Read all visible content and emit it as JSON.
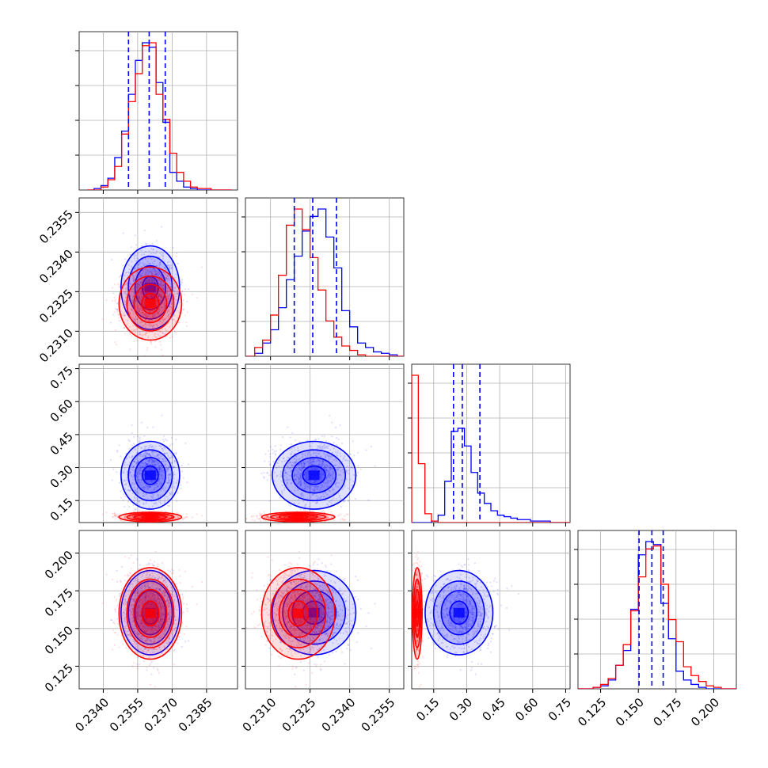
{
  "chart_data": {
    "type": "corner",
    "colors": {
      "series_a": "#0000ff",
      "series_b": "#ff0000",
      "grid": "#b0b0b0"
    },
    "grid": true,
    "parameters": [
      {
        "range": [
          0.23295,
          0.23985
        ],
        "ticks": [
          0.234,
          0.2355,
          0.237,
          0.2385
        ],
        "tick_labels": [
          "0.2340",
          "0.2355",
          "0.2370",
          "0.2385"
        ]
      },
      {
        "range": [
          0.23005,
          0.23605
        ],
        "ticks": [
          0.231,
          0.2325,
          0.234,
          0.2355
        ],
        "tick_labels": [
          "0.2310",
          "0.2325",
          "0.2340",
          "0.2355"
        ]
      },
      {
        "range": [
          0.05,
          0.77
        ],
        "ticks": [
          0.15,
          0.3,
          0.45,
          0.6,
          0.75
        ],
        "tick_labels": [
          "0.15",
          "0.30",
          "0.45",
          "0.60",
          "0.75"
        ]
      },
      {
        "range": [
          0.11,
          0.215
        ],
        "ticks": [
          0.125,
          0.15,
          0.175,
          0.2
        ],
        "tick_labels": [
          "0.125",
          "0.150",
          "0.175",
          "0.200"
        ]
      }
    ],
    "marginals": [
      {
        "bins": [
          0.2333,
          0.2336,
          0.2339,
          0.2342,
          0.2345,
          0.2348,
          0.2351,
          0.2354,
          0.2357,
          0.236,
          0.2363,
          0.2366,
          0.2369,
          0.2372,
          0.2375,
          0.2378,
          0.2381,
          0.2384,
          0.2387,
          0.239,
          0.2393,
          0.2396
        ],
        "series_a": [
          0.0,
          0.01,
          0.03,
          0.08,
          0.22,
          0.4,
          0.65,
          0.88,
          1.0,
          0.97,
          0.73,
          0.46,
          0.12,
          0.06,
          0.02,
          0.01,
          0.0,
          0.0,
          0.0,
          0.0,
          0.0
        ],
        "series_b": [
          0.0,
          0.0,
          0.02,
          0.07,
          0.16,
          0.38,
          0.6,
          0.79,
          0.98,
          1.0,
          0.65,
          0.48,
          0.25,
          0.12,
          0.06,
          0.02,
          0.01,
          0.01,
          0.0,
          0.0,
          0.0
        ],
        "quantiles": [
          0.2351,
          0.236,
          0.2367
        ]
      },
      {
        "bins": [
          0.2301,
          0.2304,
          0.2307,
          0.231,
          0.2313,
          0.2316,
          0.2319,
          0.2322,
          0.2325,
          0.2328,
          0.2331,
          0.2334,
          0.2337,
          0.234,
          0.2343,
          0.2346,
          0.2349,
          0.2352,
          0.2355,
          0.2358,
          0.2361
        ],
        "series_a": [
          0.0,
          0.02,
          0.09,
          0.18,
          0.33,
          0.52,
          0.68,
          0.85,
          0.95,
          1.0,
          0.81,
          0.6,
          0.31,
          0.2,
          0.09,
          0.06,
          0.03,
          0.02,
          0.01,
          0.0
        ],
        "series_b": [
          0.0,
          0.06,
          0.11,
          0.28,
          0.55,
          0.89,
          1.0,
          0.86,
          0.67,
          0.45,
          0.24,
          0.13,
          0.07,
          0.04,
          0.01,
          0.0,
          0.0,
          0.0,
          0.0,
          0.0
        ],
        "quantiles": [
          0.2319,
          0.2326,
          0.2335
        ]
      },
      {
        "bins": [
          0.05,
          0.08,
          0.11,
          0.14,
          0.17,
          0.2,
          0.23,
          0.26,
          0.29,
          0.32,
          0.35,
          0.38,
          0.41,
          0.44,
          0.47,
          0.5,
          0.53,
          0.56,
          0.59,
          0.62,
          0.65,
          0.68,
          0.71,
          0.74,
          0.77
        ],
        "series_a": [
          0.0,
          0.0,
          0.0,
          0.01,
          0.05,
          0.28,
          0.62,
          0.64,
          0.52,
          0.34,
          0.2,
          0.13,
          0.08,
          0.05,
          0.04,
          0.03,
          0.02,
          0.02,
          0.01,
          0.01,
          0.01,
          0.0,
          0.0,
          0.0
        ],
        "series_b": [
          1.0,
          0.4,
          0.06,
          0.01,
          0.0,
          0.0,
          0.0,
          0.0,
          0.0,
          0.0,
          0.0,
          0.0,
          0.0,
          0.0,
          0.0,
          0.0,
          0.0,
          0.0,
          0.0,
          0.0,
          0.0,
          0.0,
          0.0,
          0.0
        ],
        "quantiles": [
          0.24,
          0.28,
          0.36
        ]
      },
      {
        "bins": [
          0.11,
          0.115,
          0.12,
          0.125,
          0.13,
          0.135,
          0.14,
          0.145,
          0.15,
          0.155,
          0.16,
          0.165,
          0.17,
          0.175,
          0.18,
          0.185,
          0.19,
          0.195,
          0.2,
          0.205,
          0.21,
          0.215
        ],
        "series_a": [
          0.0,
          0.0,
          0.01,
          0.02,
          0.06,
          0.16,
          0.26,
          0.54,
          0.91,
          1.0,
          0.98,
          0.58,
          0.34,
          0.12,
          0.06,
          0.03,
          0.01,
          0.0,
          0.0,
          0.0,
          0.0
        ],
        "series_b": [
          0.0,
          0.0,
          0.01,
          0.03,
          0.07,
          0.16,
          0.3,
          0.53,
          0.76,
          0.95,
          0.97,
          0.71,
          0.47,
          0.32,
          0.15,
          0.09,
          0.05,
          0.02,
          0.01,
          0.0,
          0.0
        ],
        "quantiles": [
          0.1505,
          0.159,
          0.1665
        ]
      }
    ],
    "series": [
      {
        "color": "#0000ff",
        "mean": [
          0.23605,
          0.23265,
          0.265,
          0.1605
        ],
        "std": [
          0.00058,
          0.00072,
          0.07,
          0.0127
        ]
      },
      {
        "color": "#ff0000",
        "mean": [
          0.23605,
          0.23205,
          0.075,
          0.16
        ],
        "std": [
          0.00062,
          0.00063,
          0.01,
          0.0138
        ]
      }
    ]
  }
}
